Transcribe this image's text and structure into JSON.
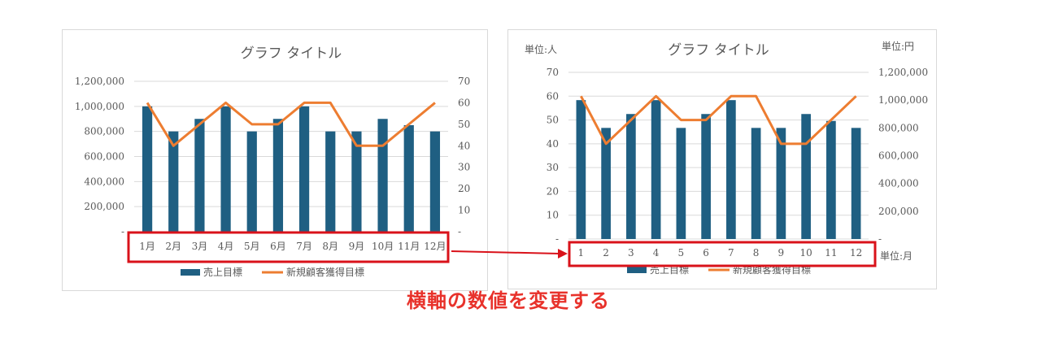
{
  "colors": {
    "bar": "#1f5f82",
    "line": "#ed7d31",
    "highlight": "#d9121a",
    "axis_text": "#595959",
    "grid": "#d9d9d9"
  },
  "caption": "横軸の数値を変更する",
  "chart_data": [
    {
      "type": "bar",
      "title": "グラフ タイトル",
      "categories": [
        "1月",
        "2月",
        "3月",
        "4月",
        "5月",
        "6月",
        "7月",
        "8月",
        "9月",
        "10月",
        "11月",
        "12月"
      ],
      "series": [
        {
          "name": "売上目標",
          "type": "bar",
          "axis": "left",
          "values": [
            1000000,
            800000,
            900000,
            1000000,
            800000,
            900000,
            1000000,
            800000,
            800000,
            900000,
            850000,
            800000
          ]
        },
        {
          "name": "新規顧客獲得目標",
          "type": "line",
          "axis": "right",
          "values": [
            60,
            40,
            50,
            60,
            50,
            50,
            60,
            60,
            40,
            40,
            50,
            60
          ]
        }
      ],
      "y_left": {
        "min": 0,
        "max": 1200000,
        "ticks": [
          "-",
          "200,000",
          "400,000",
          "600,000",
          "800,000",
          "1,000,000",
          "1,200,000"
        ]
      },
      "y_right": {
        "min": 0,
        "max": 70,
        "ticks": [
          "-",
          "10",
          "20",
          "30",
          "40",
          "50",
          "60",
          "70"
        ]
      },
      "y_left_unit": "",
      "y_right_unit": "",
      "x_unit": "",
      "grid": true,
      "legend": "bottom"
    },
    {
      "type": "bar",
      "title": "グラフ タイトル",
      "categories": [
        "1",
        "2",
        "3",
        "4",
        "5",
        "6",
        "7",
        "8",
        "9",
        "10",
        "11",
        "12"
      ],
      "series": [
        {
          "name": "売上目標",
          "type": "bar",
          "axis": "right",
          "values": [
            1000000,
            800000,
            900000,
            1000000,
            800000,
            900000,
            1000000,
            800000,
            800000,
            900000,
            850000,
            800000
          ]
        },
        {
          "name": "新規顧客獲得目標",
          "type": "line",
          "axis": "left",
          "values": [
            60,
            40,
            50,
            60,
            50,
            50,
            60,
            60,
            40,
            40,
            50,
            60
          ]
        }
      ],
      "y_left": {
        "min": 0,
        "max": 70,
        "ticks": [
          "-",
          "10",
          "20",
          "30",
          "40",
          "50",
          "60",
          "70"
        ]
      },
      "y_right": {
        "min": 0,
        "max": 1200000,
        "ticks": [
          "-",
          "200,000",
          "400,000",
          "600,000",
          "800,000",
          "1,000,000",
          "1,200,000"
        ]
      },
      "y_left_unit": "単位:人",
      "y_right_unit": "単位:円",
      "x_unit": "単位:月",
      "grid": true,
      "legend": "bottom"
    }
  ]
}
